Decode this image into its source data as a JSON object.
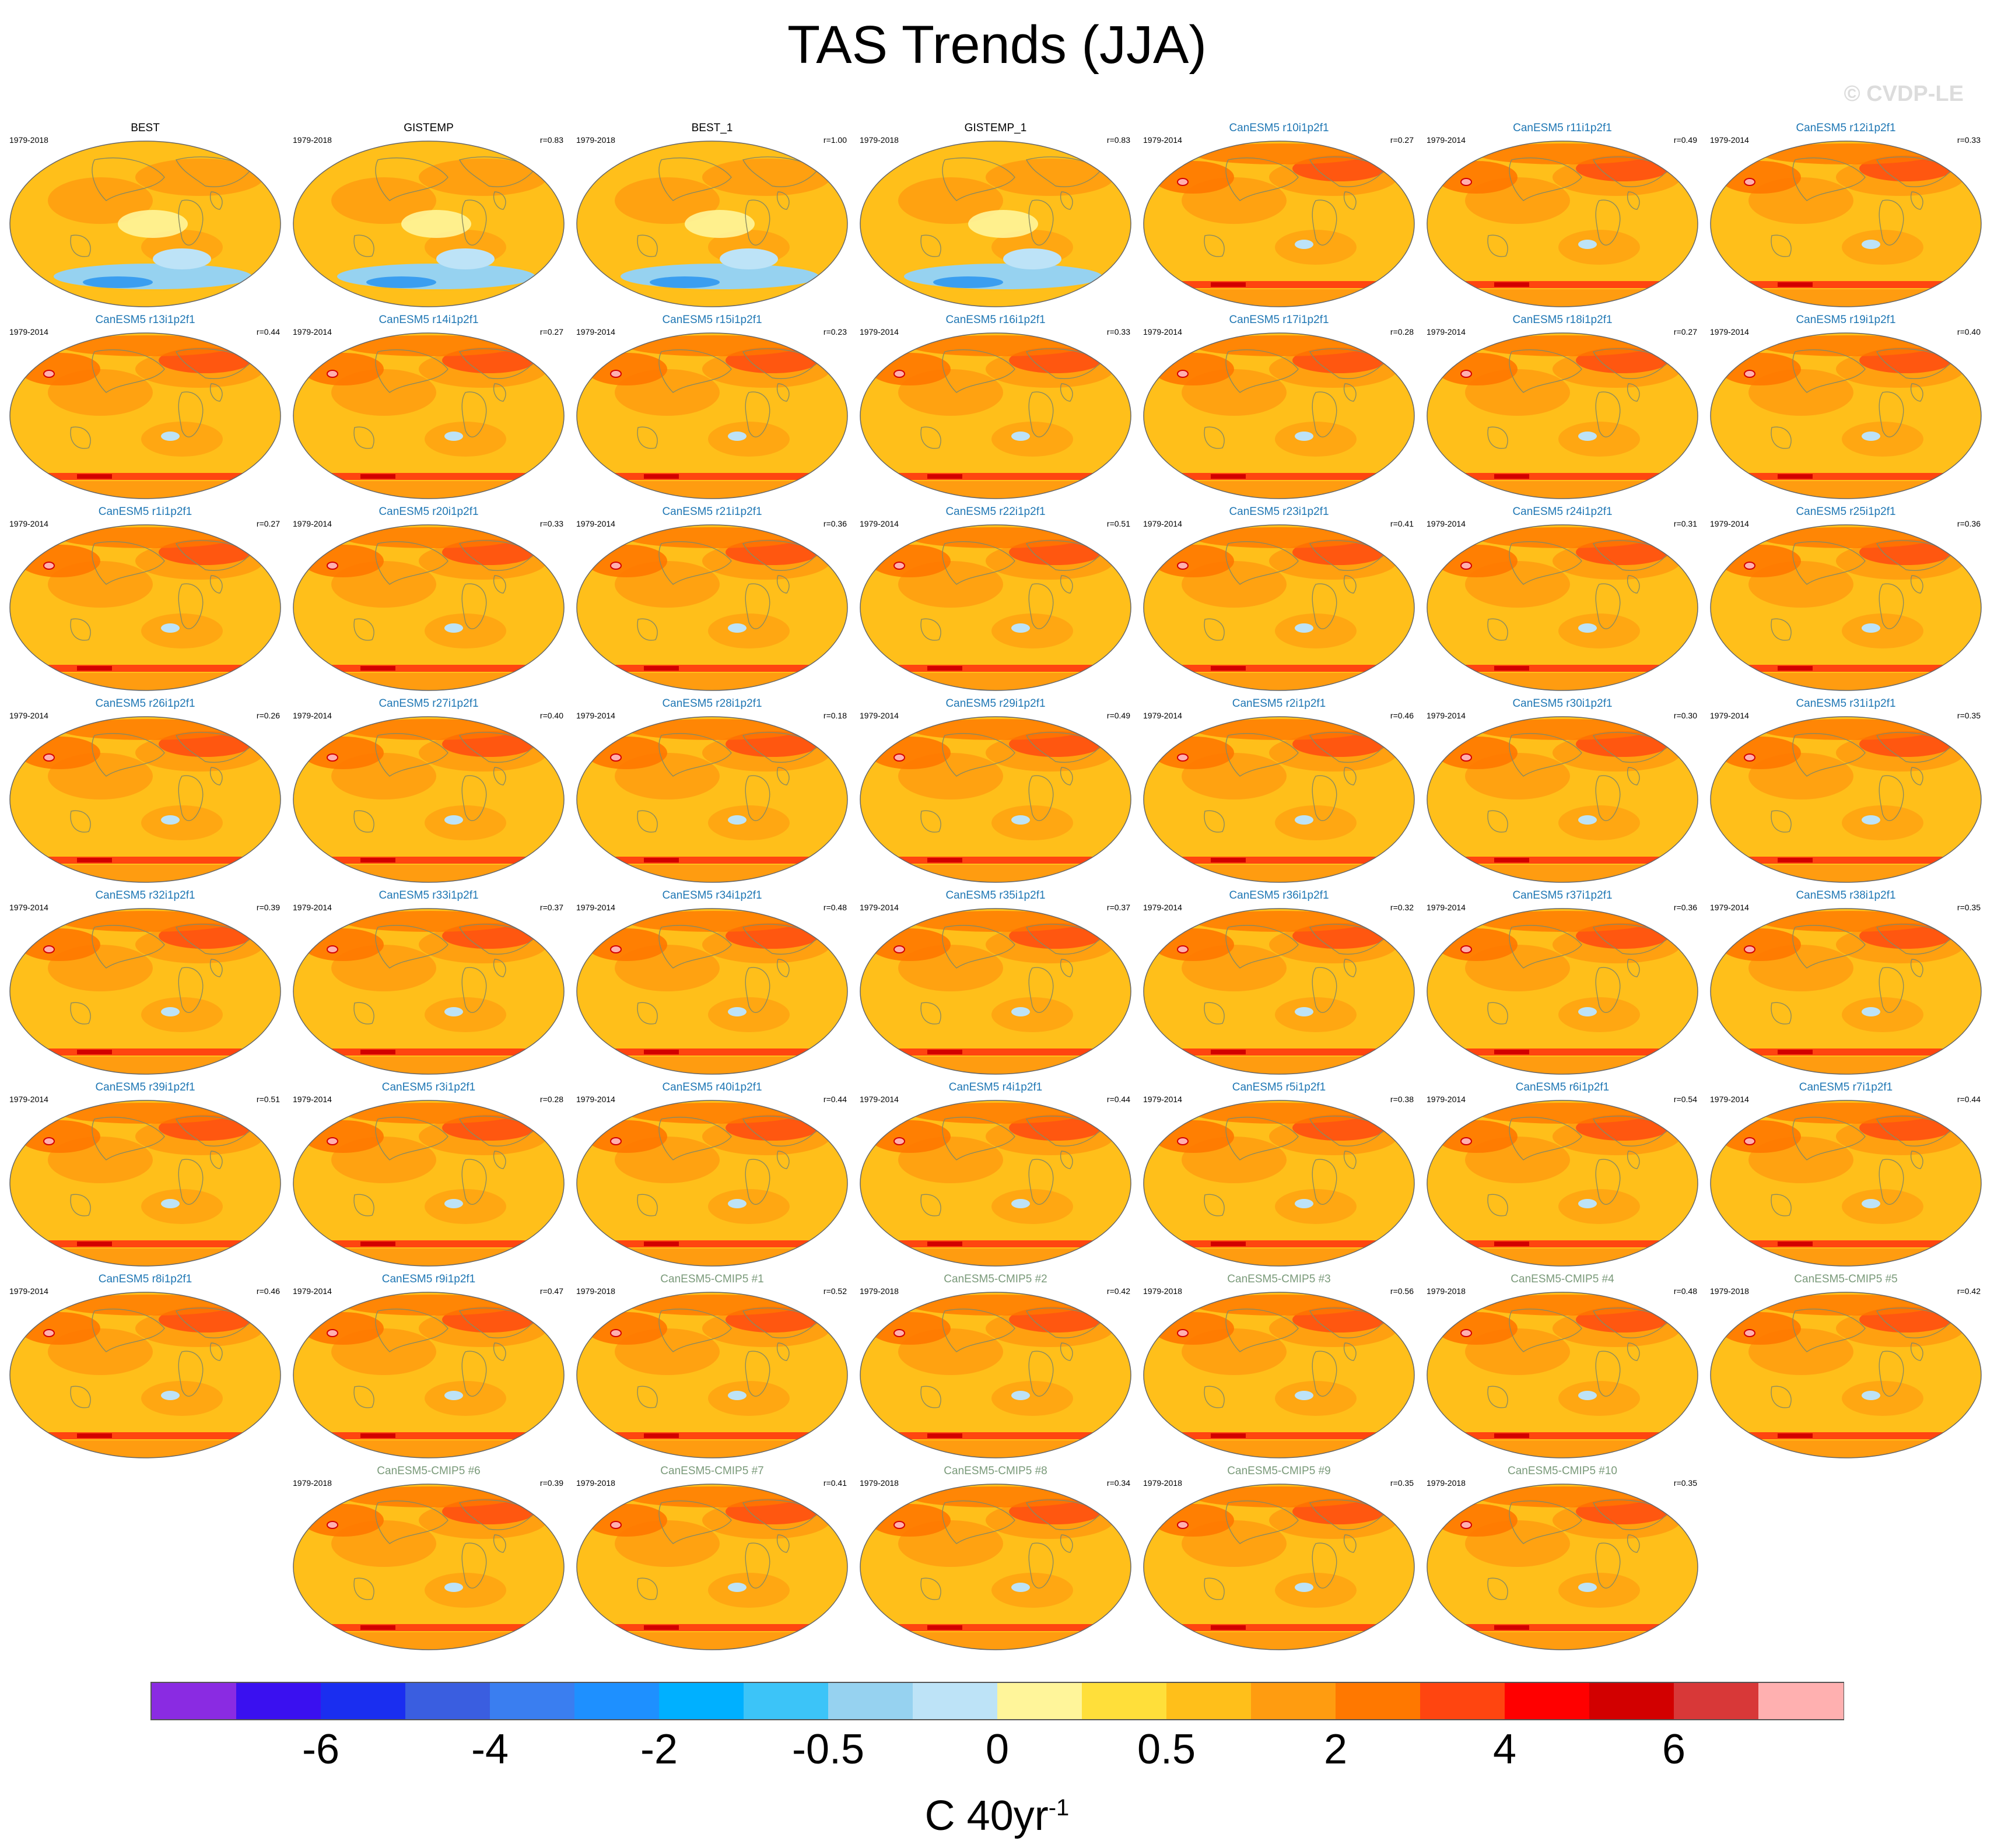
{
  "title": "TAS Trends (JJA)",
  "copyright": "© CVDP-LE",
  "colorbar": {
    "colors": [
      "#8a2be2",
      "#3a10f0",
      "#1a2ef0",
      "#3a5ee0",
      "#3a7ef0",
      "#1e90ff",
      "#00b0ff",
      "#3cc4f8",
      "#96d2f0",
      "#bde3f7",
      "#fff59a",
      "#ffdf3a",
      "#ffbf1a",
      "#ff9c10",
      "#ff7800",
      "#ff4510",
      "#ff0000",
      "#d20000",
      "#d83838",
      "#ffb0b0"
    ],
    "tick_labels": [
      "-6",
      "-4",
      "-2",
      "-0.5",
      "0",
      "0.5",
      "2",
      "4",
      "6"
    ],
    "units_base": "C 40yr",
    "units_exp": "-1"
  },
  "panels": [
    {
      "title": "BEST",
      "period": "1979-2018",
      "corr": "",
      "kind": "obs"
    },
    {
      "title": "GISTEMP",
      "period": "1979-2018",
      "corr": "r=0.83",
      "kind": "obs"
    },
    {
      "title": "BEST_1",
      "period": "1979-2018",
      "corr": "r=1.00",
      "kind": "obs"
    },
    {
      "title": "GISTEMP_1",
      "period": "1979-2018",
      "corr": "r=0.83",
      "kind": "obs"
    },
    {
      "title": "CanESM5 r10i1p2f1",
      "period": "1979-2014",
      "corr": "r=0.27",
      "kind": "le"
    },
    {
      "title": "CanESM5 r11i1p2f1",
      "period": "1979-2014",
      "corr": "r=0.49",
      "kind": "le"
    },
    {
      "title": "CanESM5 r12i1p2f1",
      "period": "1979-2014",
      "corr": "r=0.33",
      "kind": "le"
    },
    {
      "title": "CanESM5 r13i1p2f1",
      "period": "1979-2014",
      "corr": "r=0.44",
      "kind": "le"
    },
    {
      "title": "CanESM5 r14i1p2f1",
      "period": "1979-2014",
      "corr": "r=0.27",
      "kind": "le"
    },
    {
      "title": "CanESM5 r15i1p2f1",
      "period": "1979-2014",
      "corr": "r=0.23",
      "kind": "le"
    },
    {
      "title": "CanESM5 r16i1p2f1",
      "period": "1979-2014",
      "corr": "r=0.33",
      "kind": "le"
    },
    {
      "title": "CanESM5 r17i1p2f1",
      "period": "1979-2014",
      "corr": "r=0.28",
      "kind": "le"
    },
    {
      "title": "CanESM5 r18i1p2f1",
      "period": "1979-2014",
      "corr": "r=0.27",
      "kind": "le"
    },
    {
      "title": "CanESM5 r19i1p2f1",
      "period": "1979-2014",
      "corr": "r=0.40",
      "kind": "le"
    },
    {
      "title": "CanESM5 r1i1p2f1",
      "period": "1979-2014",
      "corr": "r=0.27",
      "kind": "le"
    },
    {
      "title": "CanESM5 r20i1p2f1",
      "period": "1979-2014",
      "corr": "r=0.33",
      "kind": "le"
    },
    {
      "title": "CanESM5 r21i1p2f1",
      "period": "1979-2014",
      "corr": "r=0.36",
      "kind": "le"
    },
    {
      "title": "CanESM5 r22i1p2f1",
      "period": "1979-2014",
      "corr": "r=0.51",
      "kind": "le"
    },
    {
      "title": "CanESM5 r23i1p2f1",
      "period": "1979-2014",
      "corr": "r=0.41",
      "kind": "le"
    },
    {
      "title": "CanESM5 r24i1p2f1",
      "period": "1979-2014",
      "corr": "r=0.31",
      "kind": "le"
    },
    {
      "title": "CanESM5 r25i1p2f1",
      "period": "1979-2014",
      "corr": "r=0.36",
      "kind": "le"
    },
    {
      "title": "CanESM5 r26i1p2f1",
      "period": "1979-2014",
      "corr": "r=0.26",
      "kind": "le"
    },
    {
      "title": "CanESM5 r27i1p2f1",
      "period": "1979-2014",
      "corr": "r=0.40",
      "kind": "le"
    },
    {
      "title": "CanESM5 r28i1p2f1",
      "period": "1979-2014",
      "corr": "r=0.18",
      "kind": "le"
    },
    {
      "title": "CanESM5 r29i1p2f1",
      "period": "1979-2014",
      "corr": "r=0.49",
      "kind": "le"
    },
    {
      "title": "CanESM5 r2i1p2f1",
      "period": "1979-2014",
      "corr": "r=0.46",
      "kind": "le"
    },
    {
      "title": "CanESM5 r30i1p2f1",
      "period": "1979-2014",
      "corr": "r=0.30",
      "kind": "le"
    },
    {
      "title": "CanESM5 r31i1p2f1",
      "period": "1979-2014",
      "corr": "r=0.35",
      "kind": "le"
    },
    {
      "title": "CanESM5 r32i1p2f1",
      "period": "1979-2014",
      "corr": "r=0.39",
      "kind": "le"
    },
    {
      "title": "CanESM5 r33i1p2f1",
      "period": "1979-2014",
      "corr": "r=0.37",
      "kind": "le"
    },
    {
      "title": "CanESM5 r34i1p2f1",
      "period": "1979-2014",
      "corr": "r=0.48",
      "kind": "le"
    },
    {
      "title": "CanESM5 r35i1p2f1",
      "period": "1979-2014",
      "corr": "r=0.37",
      "kind": "le"
    },
    {
      "title": "CanESM5 r36i1p2f1",
      "period": "1979-2014",
      "corr": "r=0.32",
      "kind": "le"
    },
    {
      "title": "CanESM5 r37i1p2f1",
      "period": "1979-2014",
      "corr": "r=0.36",
      "kind": "le"
    },
    {
      "title": "CanESM5 r38i1p2f1",
      "period": "1979-2014",
      "corr": "r=0.35",
      "kind": "le"
    },
    {
      "title": "CanESM5 r39i1p2f1",
      "period": "1979-2014",
      "corr": "r=0.51",
      "kind": "le"
    },
    {
      "title": "CanESM5 r3i1p2f1",
      "period": "1979-2014",
      "corr": "r=0.28",
      "kind": "le"
    },
    {
      "title": "CanESM5 r40i1p2f1",
      "period": "1979-2014",
      "corr": "r=0.44",
      "kind": "le"
    },
    {
      "title": "CanESM5 r4i1p2f1",
      "period": "1979-2014",
      "corr": "r=0.44",
      "kind": "le"
    },
    {
      "title": "CanESM5 r5i1p2f1",
      "period": "1979-2014",
      "corr": "r=0.38",
      "kind": "le"
    },
    {
      "title": "CanESM5 r6i1p2f1",
      "period": "1979-2014",
      "corr": "r=0.54",
      "kind": "le"
    },
    {
      "title": "CanESM5 r7i1p2f1",
      "period": "1979-2014",
      "corr": "r=0.44",
      "kind": "le"
    },
    {
      "title": "CanESM5 r8i1p2f1",
      "period": "1979-2014",
      "corr": "r=0.46",
      "kind": "le"
    },
    {
      "title": "CanESM5 r9i1p2f1",
      "period": "1979-2014",
      "corr": "r=0.47",
      "kind": "le"
    },
    {
      "title": "CanESM5-CMIP5 #1",
      "period": "1979-2018",
      "corr": "r=0.52",
      "kind": "cmip"
    },
    {
      "title": "CanESM5-CMIP5 #2",
      "period": "1979-2018",
      "corr": "r=0.42",
      "kind": "cmip"
    },
    {
      "title": "CanESM5-CMIP5 #3",
      "period": "1979-2018",
      "corr": "r=0.56",
      "kind": "cmip"
    },
    {
      "title": "CanESM5-CMIP5 #4",
      "period": "1979-2018",
      "corr": "r=0.48",
      "kind": "cmip"
    },
    {
      "title": "CanESM5-CMIP5 #5",
      "period": "1979-2018",
      "corr": "r=0.42",
      "kind": "cmip"
    },
    {
      "title": "CanESM5-CMIP5 #6",
      "period": "1979-2018",
      "corr": "r=0.39",
      "kind": "cmip"
    },
    {
      "title": "CanESM5-CMIP5 #7",
      "period": "1979-2018",
      "corr": "r=0.41",
      "kind": "cmip"
    },
    {
      "title": "CanESM5-CMIP5 #8",
      "period": "1979-2018",
      "corr": "r=0.34",
      "kind": "cmip"
    },
    {
      "title": "CanESM5-CMIP5 #9",
      "period": "1979-2018",
      "corr": "r=0.35",
      "kind": "cmip"
    },
    {
      "title": "CanESM5-CMIP5 #10",
      "period": "1979-2018",
      "corr": "r=0.35",
      "kind": "cmip"
    }
  ]
}
